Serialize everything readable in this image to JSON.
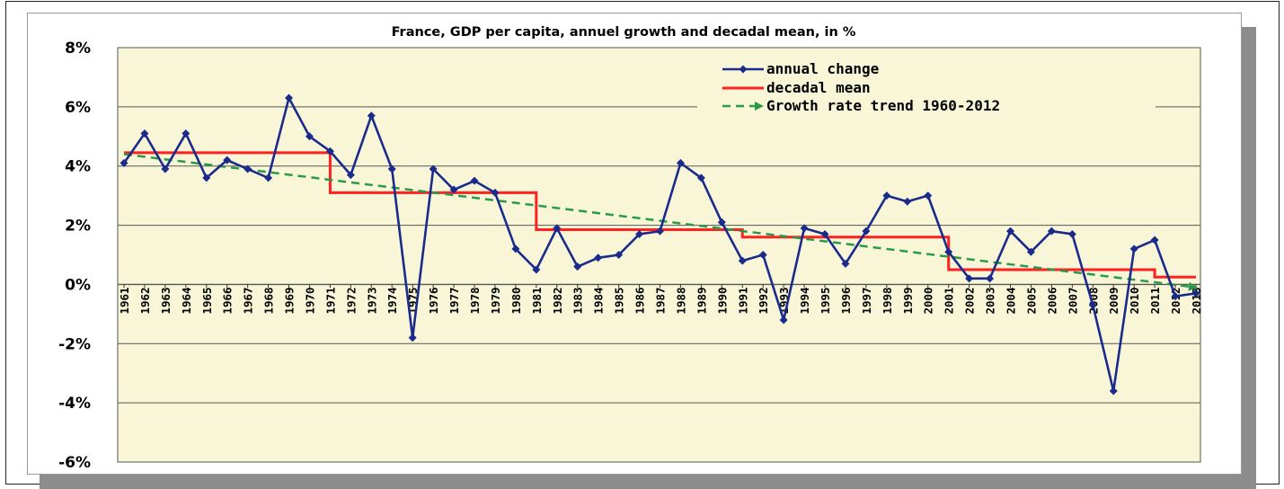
{
  "chart_data": {
    "type": "line",
    "title": "France, GDP per capita, annuel growth and decadal mean, in %",
    "xlabel": "",
    "ylabel": "",
    "ylim": [
      -6,
      8
    ],
    "yticks": [
      8,
      6,
      4,
      2,
      0,
      -2,
      -4,
      -6
    ],
    "ytick_labels": [
      "8%",
      "6%",
      "4%",
      "2%",
      "0%",
      "-2%",
      "-4%",
      "-6%"
    ],
    "grid": true,
    "plot_background": "#f8f6d7",
    "legend_position": "top-right",
    "categories": [
      "1961",
      "1962",
      "1963",
      "1964",
      "1965",
      "1966",
      "1967",
      "1968",
      "1969",
      "1970",
      "1971",
      "1972",
      "1973",
      "1974",
      "1975",
      "1976",
      "1977",
      "1978",
      "1979",
      "1980",
      "1981",
      "1982",
      "1983",
      "1984",
      "1985",
      "1986",
      "1987",
      "1988",
      "1989",
      "1990",
      "1991",
      "1992",
      "1993",
      "1994",
      "1995",
      "1996",
      "1997",
      "1998",
      "1999",
      "2000",
      "2001",
      "2002",
      "2003",
      "2004",
      "2005",
      "2006",
      "2007",
      "2008",
      "2009",
      "2010",
      "2011",
      "2012",
      "2013"
    ],
    "series": [
      {
        "name": "annual change",
        "style": "line-markers",
        "color": "#1a2b8c",
        "values": [
          4.1,
          5.1,
          3.9,
          5.1,
          3.6,
          4.2,
          3.9,
          3.6,
          6.3,
          5.0,
          4.5,
          3.7,
          5.7,
          3.9,
          -1.8,
          3.9,
          3.2,
          3.5,
          3.1,
          1.2,
          0.5,
          1.9,
          0.6,
          0.9,
          1.0,
          1.7,
          1.8,
          4.1,
          3.6,
          2.1,
          0.8,
          1.0,
          -1.2,
          1.9,
          1.7,
          0.7,
          1.8,
          3.0,
          2.8,
          3.0,
          1.1,
          0.2,
          0.2,
          1.8,
          1.1,
          1.8,
          1.7,
          -0.7,
          -3.6,
          1.2,
          1.5,
          -0.4,
          -0.3
        ]
      },
      {
        "name": "decadal mean",
        "style": "step",
        "color": "#ff2020",
        "values": [
          4.45,
          4.45,
          4.45,
          4.45,
          4.45,
          4.45,
          4.45,
          4.45,
          4.45,
          4.45,
          3.1,
          3.1,
          3.1,
          3.1,
          3.1,
          3.1,
          3.1,
          3.1,
          3.1,
          3.1,
          1.85,
          1.85,
          1.85,
          1.85,
          1.85,
          1.85,
          1.85,
          1.85,
          1.85,
          1.85,
          1.6,
          1.6,
          1.6,
          1.6,
          1.6,
          1.6,
          1.6,
          1.6,
          1.6,
          1.6,
          0.5,
          0.5,
          0.5,
          0.5,
          0.5,
          0.5,
          0.5,
          0.5,
          0.5,
          0.5,
          0.25,
          0.25,
          0.25
        ]
      },
      {
        "name": "Growth rate trend 1960-2012",
        "style": "dashed-arrow",
        "color": "#2a9a4a",
        "start": {
          "x": "1961",
          "y": 4.4
        },
        "end": {
          "x": "2013",
          "y": -0.1
        }
      }
    ]
  }
}
